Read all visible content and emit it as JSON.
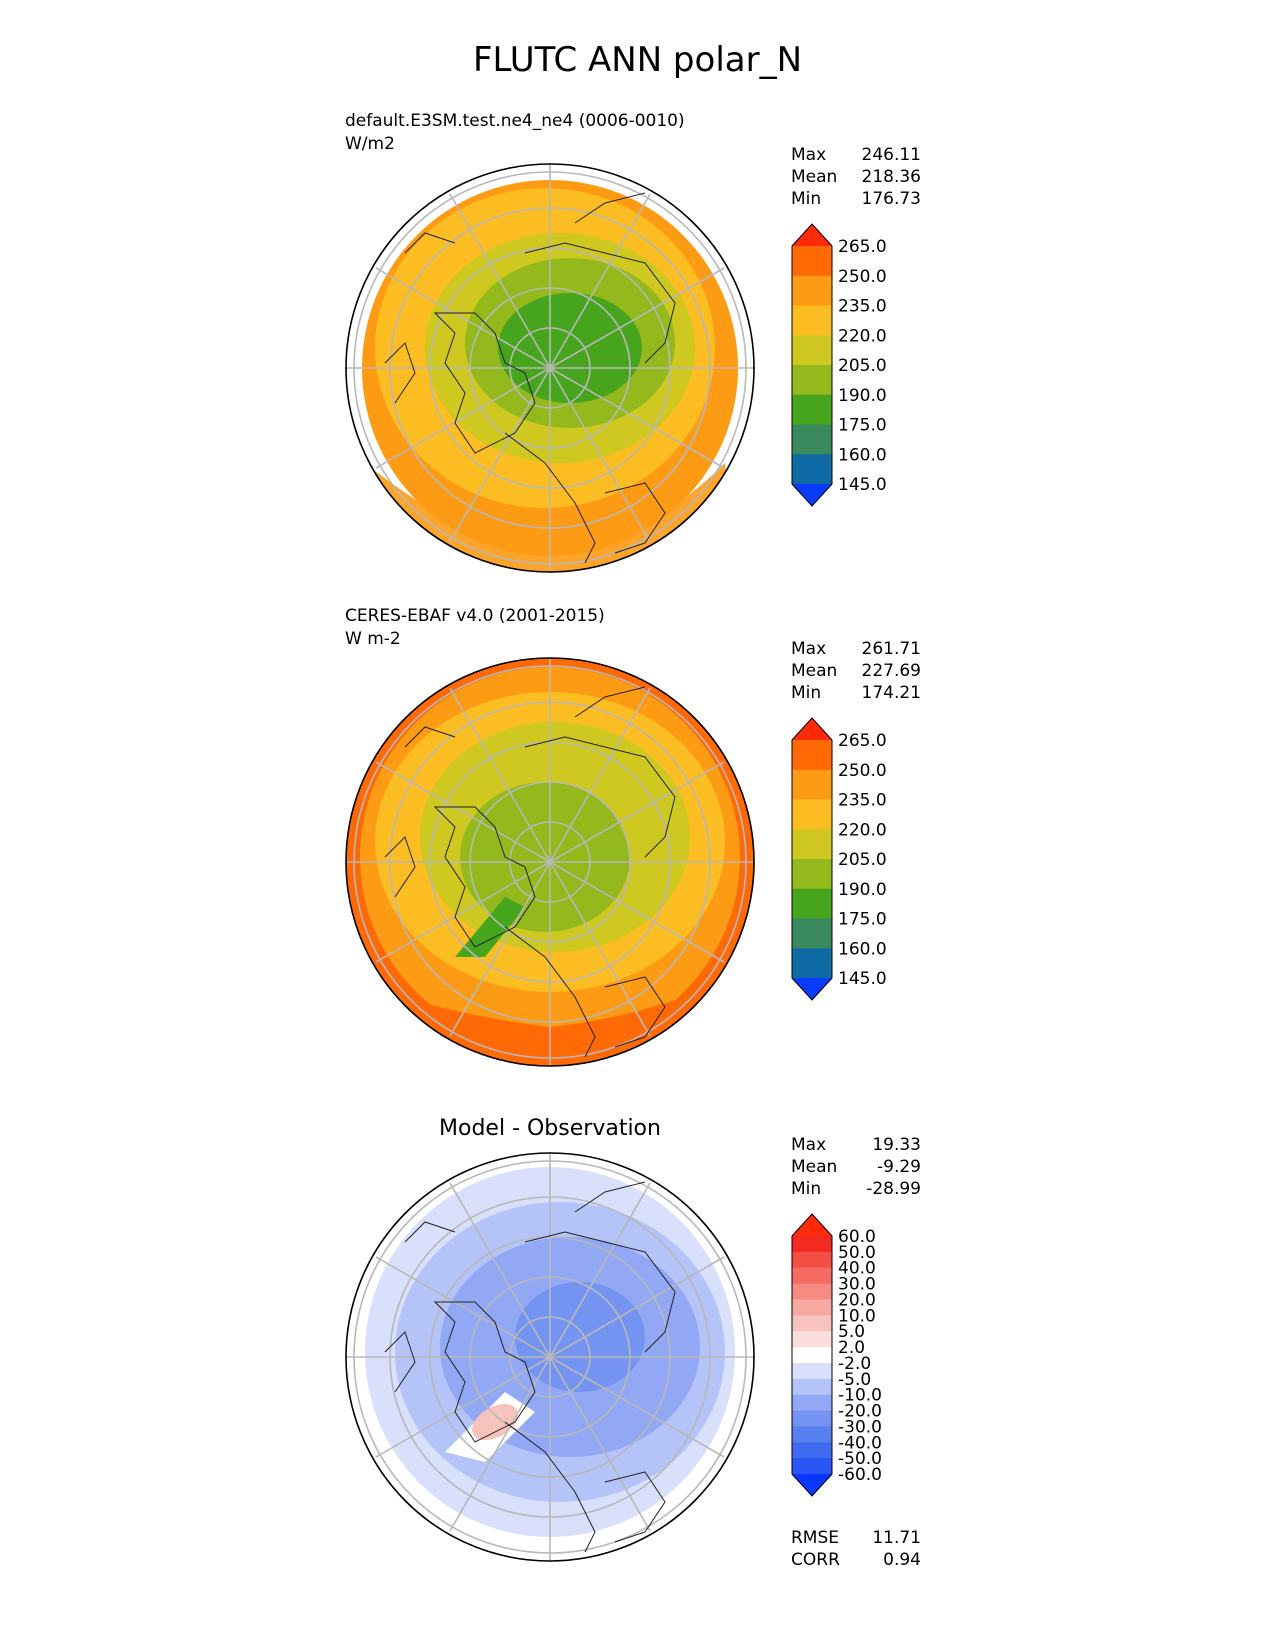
{
  "title": "FLUTC ANN polar_N",
  "panels": [
    {
      "id": "test",
      "title_line1": "default.E3SM.test.ne4_ne4 (0006-0010)",
      "title_line2": "W/m2",
      "stats": {
        "max_label": "Max",
        "max": "246.11",
        "mean_label": "Mean",
        "mean": "218.36",
        "min_label": "Min",
        "min": "176.73"
      },
      "colorbar": {
        "levels": [
          "145.0",
          "160.0",
          "175.0",
          "190.0",
          "205.0",
          "220.0",
          "235.0",
          "250.0",
          "265.0"
        ],
        "colors": [
          "#0a3cff",
          "#0d6aa3",
          "#3a8a5e",
          "#46a51d",
          "#93b91c",
          "#cfc821",
          "#fbbd22",
          "#fd9b14",
          "#ff6a06",
          "#ff2a08"
        ]
      }
    },
    {
      "id": "ref",
      "title_line1": "CERES-EBAF v4.0 (2001-2015)",
      "title_line2": "W m-2",
      "stats": {
        "max_label": "Max",
        "max": "261.71",
        "mean_label": "Mean",
        "mean": "227.69",
        "min_label": "Min",
        "min": "174.21"
      },
      "colorbar": {
        "levels": [
          "145.0",
          "160.0",
          "175.0",
          "190.0",
          "205.0",
          "220.0",
          "235.0",
          "250.0",
          "265.0"
        ],
        "colors": [
          "#0a3cff",
          "#0d6aa3",
          "#3a8a5e",
          "#46a51d",
          "#93b91c",
          "#cfc821",
          "#fbbd22",
          "#fd9b14",
          "#ff6a06",
          "#ff2a08"
        ]
      }
    },
    {
      "id": "diff",
      "center_title": "Model - Observation",
      "stats": {
        "max_label": "Max",
        "max": "19.33",
        "mean_label": "Mean",
        "mean": "-9.29",
        "min_label": "Min",
        "min": "-28.99"
      },
      "metrics": {
        "rmse_label": "RMSE",
        "rmse": "11.71",
        "corr_label": "CORR",
        "corr": "0.94"
      },
      "colorbar": {
        "levels": [
          "-60.0",
          "-50.0",
          "-40.0",
          "-30.0",
          "-20.0",
          "-10.0",
          "-5.0",
          "-2.0",
          "2.0",
          "5.0",
          "10.0",
          "20.0",
          "30.0",
          "40.0",
          "50.0",
          "60.0"
        ],
        "colors": [
          "#0a37ff",
          "#2a55f5",
          "#3f6af0",
          "#5880f0",
          "#7594f2",
          "#92a8f4",
          "#b4c3f8",
          "#d8e0fb",
          "#ffffff",
          "#fbdedb",
          "#f8c3bd",
          "#f7a89f",
          "#f68b81",
          "#f56d62",
          "#f44d43",
          "#f22a22",
          "#ff2a08"
        ]
      }
    }
  ],
  "icons": {
    "map_projection": "north-polar-stereographic-globe"
  }
}
